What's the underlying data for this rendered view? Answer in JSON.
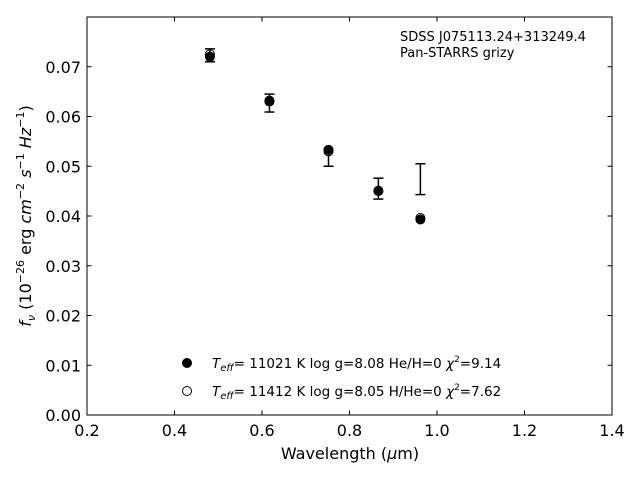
{
  "chart_data": {
    "type": "scatter",
    "title": "",
    "xlabel": "Wavelength (μm)",
    "ylabel": "f_ν (10^−26 erg cm^−2 s^−1 Hz^−1)",
    "xlim": [
      0.2,
      1.4
    ],
    "ylim": [
      0.0,
      0.08
    ],
    "xticks": [
      "0.2",
      "0.4",
      "0.6",
      "0.8",
      "1.0",
      "1.2",
      "1.4"
    ],
    "yticks": [
      "0.00",
      "0.01",
      "0.02",
      "0.03",
      "0.04",
      "0.05",
      "0.06",
      "0.07"
    ],
    "grid": false,
    "annotation": {
      "line1": "SDSS J075113.24+313249.4",
      "line2": "Pan-STARRS grizy"
    },
    "observed": {
      "x": [
        0.481,
        0.617,
        0.752,
        0.866,
        0.962
      ],
      "y": [
        0.0723,
        0.0627,
        0.0517,
        0.0455,
        0.0474
      ],
      "err": [
        0.0013,
        0.0018,
        0.0017,
        0.0021,
        0.0031
      ]
    },
    "series": [
      {
        "marker": "filled-circle",
        "x": [
          0.481,
          0.617,
          0.752,
          0.866,
          0.962
        ],
        "y": [
          0.072,
          0.0632,
          0.0533,
          0.0451,
          0.0393
        ],
        "legend": {
          "t": "T",
          "sub": "eff",
          "p1": "= 11021 K  log g=8.08  He/H=0  ",
          "chi": "χ",
          "p2": "=9.14"
        }
      },
      {
        "marker": "open-circle",
        "x": [
          0.481,
          0.617,
          0.752,
          0.866,
          0.962
        ],
        "y": [
          0.0725,
          0.063,
          0.053,
          0.045,
          0.0396
        ],
        "legend": {
          "t": "T",
          "sub": "eff",
          "p1": "= 11412 K  log g=8.05  H/He=0  ",
          "chi": "χ",
          "p2": "=7.62"
        }
      }
    ]
  }
}
